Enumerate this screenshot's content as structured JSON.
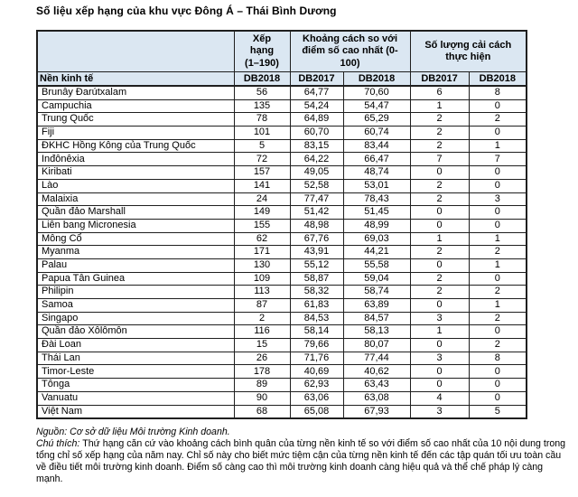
{
  "page": {
    "title": "Số liệu xếp hạng của khu vực Đông Á – Thái Bình Dương"
  },
  "table": {
    "economy_header": "Nền kinh tế",
    "group_headers": {
      "rank": "Xếp\nhạng\n(1–190)",
      "distance": "Khoảng cách so với\nđiểm số cao nhất (0-\n100)",
      "reforms": "Số lượng cải cách\nthực hiện"
    },
    "sub_headers": {
      "rank_db2018": "DB2018",
      "dtf_db2017": "DB2017",
      "dtf_db2018": "DB2018",
      "ref_db2017": "DB2017",
      "ref_db2018": "DB2018"
    },
    "rows": [
      {
        "name": "Brunây Đarútxalam",
        "rank": "56",
        "dtf2017": "64,77",
        "dtf2018": "70,60",
        "ref2017": "6",
        "ref2018": "8"
      },
      {
        "name": "Campuchia",
        "rank": "135",
        "dtf2017": "54,24",
        "dtf2018": "54,47",
        "ref2017": "1",
        "ref2018": "0"
      },
      {
        "name": "Trung Quốc",
        "rank": "78",
        "dtf2017": "64,89",
        "dtf2018": "65,29",
        "ref2017": "2",
        "ref2018": "2"
      },
      {
        "name": "Fiji",
        "rank": "101",
        "dtf2017": "60,70",
        "dtf2018": "60,74",
        "ref2017": "2",
        "ref2018": "0"
      },
      {
        "name": "ĐKHC Hồng Kông của Trung Quốc",
        "rank": "5",
        "dtf2017": "83,15",
        "dtf2018": "83,44",
        "ref2017": "2",
        "ref2018": "1"
      },
      {
        "name": "Inđônêxia",
        "rank": "72",
        "dtf2017": "64,22",
        "dtf2018": "66,47",
        "ref2017": "7",
        "ref2018": "7"
      },
      {
        "name": "Kiribati",
        "rank": "157",
        "dtf2017": "49,05",
        "dtf2018": "48,74",
        "ref2017": "0",
        "ref2018": "0"
      },
      {
        "name": "Lào",
        "rank": "141",
        "dtf2017": "52,58",
        "dtf2018": "53,01",
        "ref2017": "2",
        "ref2018": "0"
      },
      {
        "name": "Malaixia",
        "rank": "24",
        "dtf2017": "77,47",
        "dtf2018": "78,43",
        "ref2017": "2",
        "ref2018": "3"
      },
      {
        "name": "Quần đảo Marshall",
        "rank": "149",
        "dtf2017": "51,42",
        "dtf2018": "51,45",
        "ref2017": "0",
        "ref2018": "0"
      },
      {
        "name": "Liên bang Micronesia",
        "rank": "155",
        "dtf2017": "48,98",
        "dtf2018": "48,99",
        "ref2017": "0",
        "ref2018": "0"
      },
      {
        "name": "Mông Cổ",
        "rank": "62",
        "dtf2017": "67,76",
        "dtf2018": "69,03",
        "ref2017": "1",
        "ref2018": "1"
      },
      {
        "name": "Myanma",
        "rank": "171",
        "dtf2017": "43,91",
        "dtf2018": "44,21",
        "ref2017": "2",
        "ref2018": "2"
      },
      {
        "name": "Palau",
        "rank": "130",
        "dtf2017": "55,12",
        "dtf2018": "55,58",
        "ref2017": "0",
        "ref2018": "1"
      },
      {
        "name": "Papua Tân Guinea",
        "rank": "109",
        "dtf2017": "58,87",
        "dtf2018": "59,04",
        "ref2017": "2",
        "ref2018": "0"
      },
      {
        "name": "Philipin",
        "rank": "113",
        "dtf2017": "58,32",
        "dtf2018": "58,74",
        "ref2017": "2",
        "ref2018": "2"
      },
      {
        "name": "Samoa",
        "rank": "87",
        "dtf2017": "61,83",
        "dtf2018": "63,89",
        "ref2017": "0",
        "ref2018": "1"
      },
      {
        "name": "Singapo",
        "rank": "2",
        "dtf2017": "84,53",
        "dtf2018": "84,57",
        "ref2017": "3",
        "ref2018": "2"
      },
      {
        "name": "Quần đảo Xôlômôn",
        "rank": "116",
        "dtf2017": "58,14",
        "dtf2018": "58,13",
        "ref2017": "1",
        "ref2018": "0"
      },
      {
        "name": "Đài Loan",
        "rank": "15",
        "dtf2017": "79,66",
        "dtf2018": "80,07",
        "ref2017": "0",
        "ref2018": "2"
      },
      {
        "name": "Thái Lan",
        "rank": "26",
        "dtf2017": "71,76",
        "dtf2018": "77,44",
        "ref2017": "3",
        "ref2018": "8"
      },
      {
        "name": "Timor-Leste",
        "rank": "178",
        "dtf2017": "40,69",
        "dtf2018": "40,62",
        "ref2017": "0",
        "ref2018": "0"
      },
      {
        "name": "Tônga",
        "rank": "89",
        "dtf2017": "62,93",
        "dtf2018": "63,43",
        "ref2017": "0",
        "ref2018": "0"
      },
      {
        "name": "Vanuatu",
        "rank": "90",
        "dtf2017": "63,06",
        "dtf2018": "63,08",
        "ref2017": "4",
        "ref2018": "0"
      },
      {
        "name": "Việt Nam",
        "rank": "68",
        "dtf2017": "65,08",
        "dtf2018": "67,93",
        "ref2017": "3",
        "ref2018": "5"
      }
    ]
  },
  "footer": {
    "source_label": "Nguồn:",
    "source_text": "Cơ sở dữ liệu Môi trường Kinh doanh.",
    "note_label": "Chú thích:",
    "note_text": "Thứ hạng căn cứ vào khoảng cách bình quân của từng nền kinh tế so với điểm số cao nhất của 10 nội dung trong tổng chỉ số xếp hạng của năm nay. Chỉ số này cho biết mức tiệm cận của từng nền kinh tế đến các tập quán tối ưu toàn cầu về điều tiết môi trường kinh doanh. Điểm số càng cao thì môi trường kinh doanh càng hiệu quả và thể chế pháp lý càng mạnh."
  },
  "colors": {
    "header_bg": "#dbe7f2",
    "border": "#1f1f1f",
    "text": "#000000"
  }
}
